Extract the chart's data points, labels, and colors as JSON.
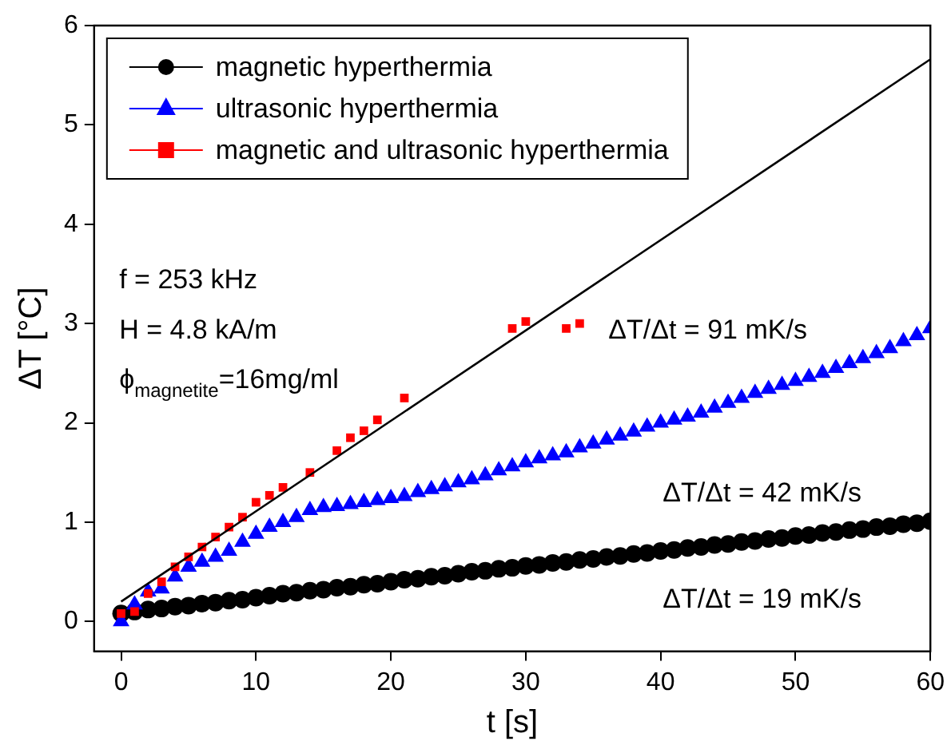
{
  "chart_data": {
    "type": "scatter",
    "xlabel": "t [s]",
    "ylabel": "ΔT [°C]",
    "xlim": [
      -2,
      60
    ],
    "xticks": [
      0,
      10,
      20,
      30,
      40,
      50,
      60
    ],
    "ylim": [
      -0.3,
      6
    ],
    "yticks": [
      0,
      1,
      2,
      3,
      4,
      5,
      6
    ],
    "grid": false,
    "legend": "top left",
    "annotations": [
      "f = 253 kHz",
      "H = 4.8 kA/m",
      "ϕ$_{magnetite}$=16mg/ml",
      "ΔT/Δt = 91 mK/s",
      "ΔT/Δt = 42 mK/s",
      "ΔT/Δt = 19 mK/s"
    ],
    "series": [
      {
        "name": "magnetic hyperthermia",
        "color": "#000000",
        "marker": "circle",
        "x": [
          0,
          1,
          2,
          3,
          4,
          5,
          6,
          7,
          8,
          9,
          10,
          11,
          12,
          13,
          14,
          15,
          16,
          17,
          18,
          19,
          20,
          21,
          22,
          23,
          24,
          25,
          26,
          27,
          28,
          29,
          30,
          31,
          32,
          33,
          34,
          35,
          36,
          37,
          38,
          39,
          40,
          41,
          42,
          43,
          44,
          45,
          46,
          47,
          48,
          49,
          50,
          51,
          52,
          53,
          54,
          55,
          56,
          57,
          58,
          59,
          60
        ],
        "values": [
          0.08,
          0.1,
          0.12,
          0.13,
          0.15,
          0.16,
          0.18,
          0.19,
          0.21,
          0.22,
          0.24,
          0.26,
          0.28,
          0.29,
          0.31,
          0.32,
          0.34,
          0.35,
          0.37,
          0.38,
          0.4,
          0.42,
          0.43,
          0.45,
          0.46,
          0.48,
          0.5,
          0.51,
          0.53,
          0.54,
          0.56,
          0.57,
          0.59,
          0.6,
          0.62,
          0.63,
          0.65,
          0.66,
          0.68,
          0.69,
          0.71,
          0.72,
          0.74,
          0.75,
          0.77,
          0.78,
          0.8,
          0.81,
          0.83,
          0.84,
          0.86,
          0.87,
          0.89,
          0.9,
          0.92,
          0.93,
          0.95,
          0.96,
          0.98,
          0.99,
          1.01
        ]
      },
      {
        "name": "ultrasonic hyperthermia",
        "color": "#0000ff",
        "marker": "triangle",
        "x": [
          0,
          1,
          2,
          3,
          4,
          5,
          6,
          7,
          8,
          9,
          10,
          11,
          12,
          13,
          14,
          15,
          16,
          17,
          18,
          19,
          20,
          21,
          22,
          23,
          24,
          25,
          26,
          27,
          28,
          29,
          30,
          31,
          32,
          33,
          34,
          35,
          36,
          37,
          38,
          39,
          40,
          41,
          42,
          43,
          44,
          45,
          46,
          47,
          48,
          49,
          50,
          51,
          52,
          53,
          54,
          55,
          56,
          57,
          58,
          59,
          60
        ],
        "values": [
          0,
          0.17,
          0.3,
          0.33,
          0.45,
          0.55,
          0.6,
          0.65,
          0.71,
          0.8,
          0.88,
          0.95,
          1.0,
          1.05,
          1.12,
          1.15,
          1.16,
          1.18,
          1.2,
          1.22,
          1.24,
          1.26,
          1.3,
          1.33,
          1.36,
          1.4,
          1.43,
          1.47,
          1.52,
          1.56,
          1.6,
          1.64,
          1.67,
          1.7,
          1.75,
          1.79,
          1.83,
          1.87,
          1.91,
          1.96,
          2.0,
          2.03,
          2.06,
          2.1,
          2.15,
          2.2,
          2.25,
          2.3,
          2.34,
          2.38,
          2.42,
          2.46,
          2.5,
          2.55,
          2.6,
          2.65,
          2.7,
          2.75,
          2.82,
          2.88,
          2.95
        ]
      },
      {
        "name": "magnetic and ultrasonic hyperthermia",
        "color": "#ff0000",
        "marker": "square",
        "x": [
          0,
          1,
          2,
          3,
          4,
          5,
          6,
          7,
          8,
          9,
          10,
          11,
          12,
          14,
          16,
          17,
          18,
          19,
          21,
          29,
          30,
          33,
          34
        ],
        "values": [
          0.08,
          0.1,
          0.28,
          0.4,
          0.55,
          0.65,
          0.75,
          0.85,
          0.95,
          1.05,
          1.2,
          1.27,
          1.35,
          1.5,
          1.72,
          1.85,
          1.92,
          2.03,
          2.25,
          2.95,
          3.02,
          2.95,
          3.0
        ]
      },
      {
        "type": "line",
        "color": "#000000",
        "marker": "none",
        "x": [
          0,
          60
        ],
        "values": [
          0.2,
          5.66
        ]
      }
    ]
  }
}
